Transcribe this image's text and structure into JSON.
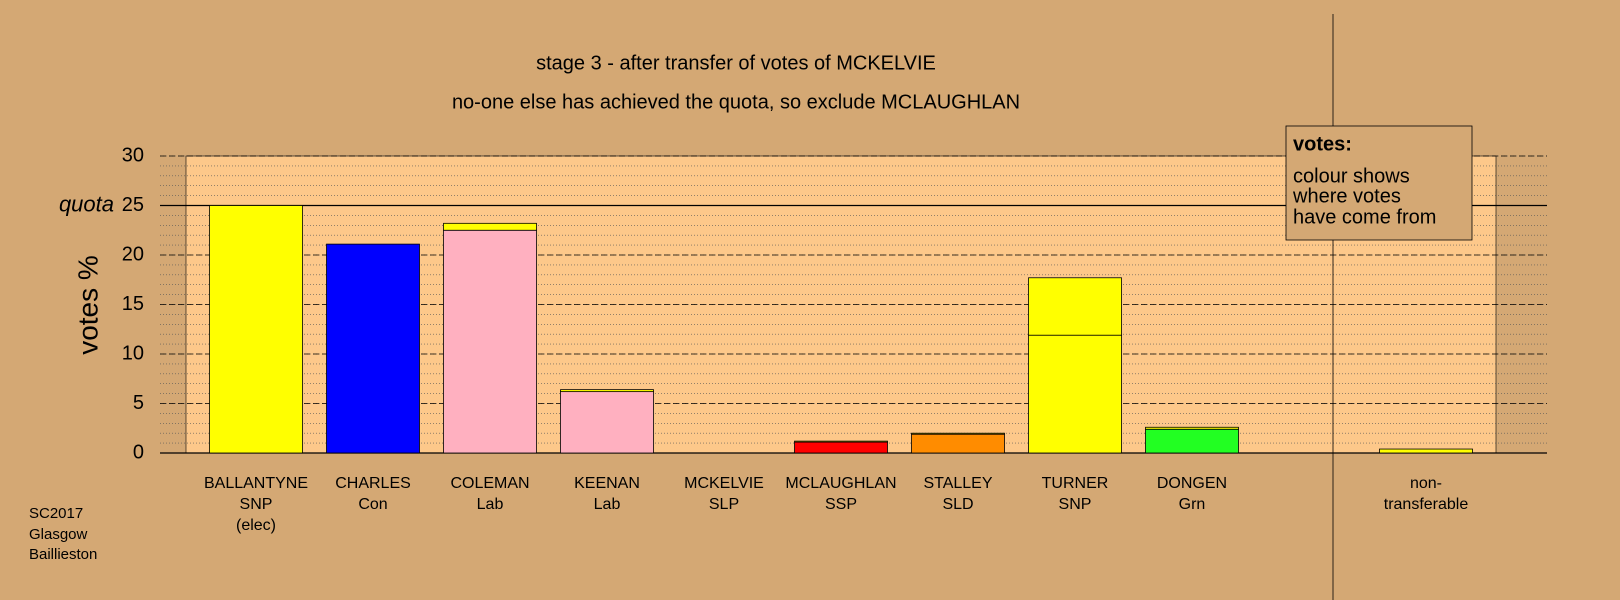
{
  "chart_data": {
    "type": "stacked-bar",
    "title": "stage 3 - after transfer of votes of MCKELVIE",
    "subtitle": "no-one else has achieved the quota, so exclude MCLAUGHLAN",
    "ylabel": "votes %",
    "ylim": [
      0,
      30
    ],
    "yticks": [
      0,
      5,
      10,
      15,
      20,
      25,
      30
    ],
    "grid": true,
    "minor_grid": 1,
    "quota": 25,
    "quota_label": "quota",
    "categories": [
      [
        "BALLANTYNE",
        "SNP",
        "(elec)"
      ],
      [
        "CHARLES",
        "Con"
      ],
      [
        "COLEMAN",
        "Lab"
      ],
      [
        "KEENAN",
        "Lab"
      ],
      [
        "MCKELVIE",
        "SLP"
      ],
      [
        "MCLAUGHLAN",
        "SSP"
      ],
      [
        "STALLEY",
        "SLD"
      ],
      [
        "TURNER",
        "SNP"
      ],
      [
        "DONGEN",
        "Grn"
      ],
      [
        "non-",
        "transferable"
      ]
    ],
    "stacks": [
      [
        {
          "value": 25.0,
          "color": "#ffff00"
        }
      ],
      [
        {
          "value": 21.1,
          "color": "#0000ff"
        }
      ],
      [
        {
          "value": 22.5,
          "color": "#ffb0c0"
        },
        {
          "value": 0.7,
          "color": "#ffff00"
        }
      ],
      [
        {
          "value": 6.2,
          "color": "#ffb0c0"
        },
        {
          "value": 0.2,
          "color": "#ffff00"
        }
      ],
      [
        {
          "value": 0,
          "color": "#ffff00"
        }
      ],
      [
        {
          "value": 1.1,
          "color": "#ff0000"
        },
        {
          "value": 0.1,
          "color": "#ffff00"
        }
      ],
      [
        {
          "value": 1.9,
          "color": "#ff8c00"
        },
        {
          "value": 0.1,
          "color": "#ffff00"
        }
      ],
      [
        {
          "value": 11.9,
          "color": "#ffff00"
        },
        {
          "value": 5.8,
          "color": "#ffff00"
        }
      ],
      [
        {
          "value": 2.4,
          "color": "#22ff22"
        },
        {
          "value": 0.2,
          "color": "#ffff00"
        }
      ],
      [
        {
          "value": 0.4,
          "color": "#ffff00"
        }
      ]
    ],
    "legend_title": "votes:",
    "legend_text": [
      "colour shows",
      "where votes",
      "have come from"
    ],
    "footer": [
      "SC2017",
      "Glasgow",
      "Baillieston"
    ]
  }
}
